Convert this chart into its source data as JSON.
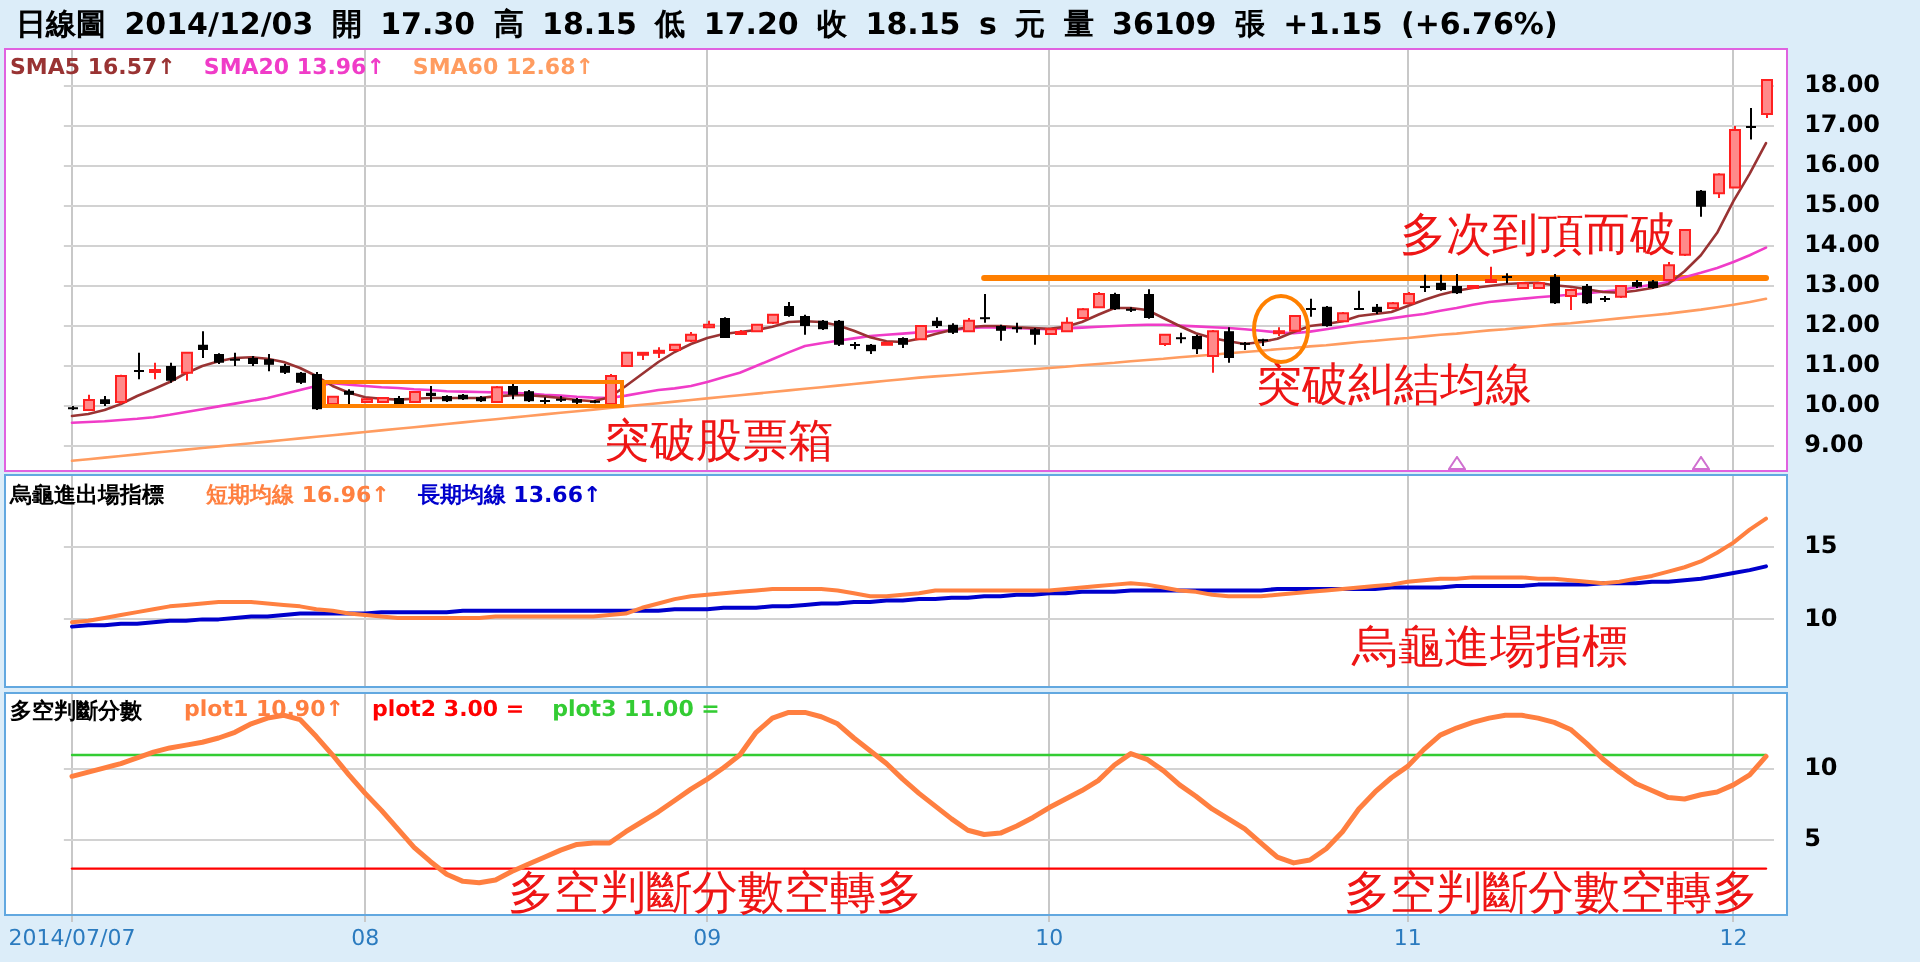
{
  "chart_data": [
    {
      "type": "candlestick",
      "title": "日線圖 2014/12/03 開 17.30 高 18.15 低 17.20 收 18.15 s 元 量 36109 張 +1.15 (+6.76%)",
      "categories": [
        "2014/07/07",
        null,
        null,
        null,
        null,
        null,
        null,
        null,
        null,
        null,
        null,
        null,
        null,
        null,
        null,
        null,
        null,
        null,
        "08",
        null,
        null,
        null,
        null,
        null,
        null,
        null,
        null,
        null,
        null,
        null,
        null,
        null,
        null,
        null,
        null,
        null,
        null,
        null,
        null,
        "09",
        null,
        null,
        null,
        null,
        null,
        null,
        null,
        null,
        null,
        null,
        null,
        null,
        null,
        null,
        null,
        null,
        null,
        null,
        null,
        null,
        "10",
        null,
        null,
        null,
        null,
        null,
        null,
        null,
        null,
        null,
        null,
        null,
        null,
        null,
        null,
        null,
        null,
        null,
        null,
        null,
        null,
        null,
        "11",
        null,
        null,
        null,
        null,
        null,
        null,
        null,
        null,
        null,
        null,
        null,
        null,
        null,
        null,
        null,
        null,
        null,
        null,
        null,
        "12",
        null,
        null
      ],
      "ohlc": [
        [
          9.97,
          10.0,
          9.9,
          9.93
        ],
        [
          9.9,
          10.28,
          9.88,
          10.15
        ],
        [
          10.17,
          10.25,
          10.0,
          10.05
        ],
        [
          10.1,
          10.78,
          10.05,
          10.75
        ],
        [
          10.9,
          11.33,
          10.67,
          10.88
        ],
        [
          10.88,
          11.08,
          10.67,
          10.9
        ],
        [
          11.0,
          11.08,
          10.58,
          10.63
        ],
        [
          10.83,
          11.35,
          10.63,
          11.33
        ],
        [
          11.53,
          11.87,
          11.2,
          11.4
        ],
        [
          11.3,
          11.32,
          11.05,
          11.08
        ],
        [
          11.18,
          11.33,
          11.0,
          11.15
        ],
        [
          11.2,
          11.25,
          11.0,
          11.05
        ],
        [
          11.17,
          11.3,
          10.87,
          11.03
        ],
        [
          11.0,
          11.05,
          10.8,
          10.83
        ],
        [
          10.83,
          10.85,
          10.55,
          10.58
        ],
        [
          10.8,
          10.85,
          9.9,
          9.92
        ],
        [
          10.05,
          10.25,
          10.0,
          10.23
        ],
        [
          10.38,
          10.42,
          9.98,
          10.28
        ],
        [
          10.1,
          10.2,
          10.08,
          10.17
        ],
        [
          10.1,
          10.22,
          10.08,
          10.2
        ],
        [
          10.2,
          10.25,
          9.95,
          10.0
        ],
        [
          10.1,
          10.37,
          10.08,
          10.35
        ],
        [
          10.33,
          10.5,
          10.1,
          10.25
        ],
        [
          10.25,
          10.27,
          10.1,
          10.12
        ],
        [
          10.28,
          10.3,
          10.15,
          10.17
        ],
        [
          10.22,
          10.25,
          10.1,
          10.12
        ],
        [
          10.1,
          10.5,
          10.08,
          10.47
        ],
        [
          10.5,
          10.58,
          10.17,
          10.28
        ],
        [
          10.37,
          10.4,
          10.1,
          10.12
        ],
        [
          10.15,
          10.22,
          10.05,
          10.12
        ],
        [
          10.18,
          10.25,
          10.1,
          10.15
        ],
        [
          10.17,
          10.2,
          10.05,
          10.08
        ],
        [
          10.13,
          10.15,
          10.07,
          10.1
        ],
        [
          10.05,
          10.8,
          10.03,
          10.75
        ],
        [
          11.0,
          11.35,
          10.98,
          11.33
        ],
        [
          11.32,
          11.35,
          11.15,
          11.33
        ],
        [
          11.35,
          11.47,
          11.2,
          11.38
        ],
        [
          11.4,
          11.55,
          11.38,
          11.53
        ],
        [
          11.63,
          11.85,
          11.6,
          11.78
        ],
        [
          11.97,
          12.13,
          11.95,
          12.03
        ],
        [
          12.2,
          12.22,
          11.7,
          11.7
        ],
        [
          11.83,
          11.9,
          11.78,
          11.85
        ],
        [
          11.87,
          12.05,
          11.85,
          12.03
        ],
        [
          12.08,
          12.3,
          12.05,
          12.28
        ],
        [
          12.5,
          12.6,
          12.23,
          12.25
        ],
        [
          12.25,
          12.28,
          11.78,
          12.0
        ],
        [
          12.13,
          12.15,
          11.9,
          11.92
        ],
        [
          12.13,
          12.15,
          11.5,
          11.53
        ],
        [
          11.55,
          11.6,
          11.42,
          11.53
        ],
        [
          11.53,
          11.55,
          11.3,
          11.37
        ],
        [
          11.55,
          11.6,
          11.53,
          11.58
        ],
        [
          11.7,
          11.72,
          11.45,
          11.53
        ],
        [
          11.67,
          12.02,
          11.65,
          12.0
        ],
        [
          12.13,
          12.22,
          11.95,
          12.0
        ],
        [
          12.03,
          12.07,
          11.8,
          11.83
        ],
        [
          11.87,
          12.2,
          11.85,
          12.13
        ],
        [
          12.22,
          12.8,
          12.08,
          12.2
        ],
        [
          12.0,
          12.03,
          11.63,
          11.88
        ],
        [
          11.97,
          12.08,
          11.83,
          11.96
        ],
        [
          11.92,
          11.95,
          11.53,
          11.78
        ],
        [
          11.8,
          11.95,
          11.78,
          11.92
        ],
        [
          11.87,
          12.22,
          11.85,
          12.08
        ],
        [
          12.2,
          12.45,
          12.18,
          12.42
        ],
        [
          12.47,
          12.85,
          12.45,
          12.8
        ],
        [
          12.8,
          12.83,
          12.4,
          12.42
        ],
        [
          12.43,
          12.47,
          12.35,
          12.38
        ],
        [
          12.8,
          12.92,
          12.18,
          12.2
        ],
        [
          11.55,
          11.8,
          11.5,
          11.78
        ],
        [
          11.72,
          11.83,
          11.57,
          11.7
        ],
        [
          11.75,
          11.78,
          11.3,
          11.42
        ],
        [
          11.25,
          11.9,
          10.83,
          11.87
        ],
        [
          11.87,
          11.97,
          11.08,
          11.2
        ],
        [
          11.58,
          11.6,
          11.4,
          11.57
        ],
        [
          11.67,
          11.68,
          11.5,
          11.66
        ],
        [
          11.83,
          11.97,
          11.75,
          11.87
        ],
        [
          11.88,
          12.27,
          11.87,
          12.25
        ],
        [
          12.45,
          12.68,
          12.23,
          12.43
        ],
        [
          12.48,
          12.5,
          11.98,
          12.0
        ],
        [
          12.12,
          12.35,
          12.1,
          12.32
        ],
        [
          12.45,
          12.88,
          12.4,
          12.42
        ],
        [
          12.48,
          12.55,
          12.3,
          12.35
        ],
        [
          12.45,
          12.6,
          12.42,
          12.57
        ],
        [
          12.57,
          12.85,
          12.55,
          12.8
        ],
        [
          13.0,
          13.28,
          12.85,
          12.98
        ],
        [
          13.08,
          13.28,
          12.88,
          12.9
        ],
        [
          13.0,
          13.3,
          12.8,
          12.82
        ],
        [
          12.95,
          13.02,
          12.93,
          13.0
        ],
        [
          13.13,
          13.48,
          13.1,
          13.15
        ],
        [
          13.25,
          13.32,
          13.07,
          13.22
        ],
        [
          12.95,
          13.1,
          12.93,
          13.07
        ],
        [
          12.95,
          13.1,
          12.93,
          13.07
        ],
        [
          13.23,
          13.3,
          12.55,
          12.57
        ],
        [
          12.75,
          12.93,
          12.4,
          12.9
        ],
        [
          13.0,
          13.05,
          12.55,
          12.57
        ],
        [
          12.7,
          12.75,
          12.6,
          12.68
        ],
        [
          12.73,
          13.02,
          12.7,
          13.0
        ],
        [
          13.1,
          13.15,
          12.95,
          12.98
        ],
        [
          13.12,
          13.15,
          12.93,
          12.95
        ],
        [
          13.15,
          13.6,
          13.12,
          13.52
        ],
        [
          13.78,
          14.42,
          13.75,
          14.4
        ],
        [
          15.38,
          15.4,
          14.73,
          14.98
        ],
        [
          15.32,
          15.82,
          15.2,
          15.79
        ],
        [
          15.46,
          17.0,
          15.45,
          16.9
        ],
        [
          17.0,
          17.45,
          16.66,
          17.0
        ],
        [
          17.3,
          18.15,
          17.2,
          18.15
        ]
      ],
      "series": [
        {
          "name": "SMA5 16.57↑",
          "type": "line",
          "color": "#993333",
          "values": [
            9.75,
            9.8,
            9.9,
            10.05,
            10.25,
            10.42,
            10.6,
            10.82,
            11.0,
            11.12,
            11.2,
            11.22,
            11.18,
            11.1,
            10.95,
            10.75,
            10.5,
            10.33,
            10.22,
            10.18,
            10.16,
            10.18,
            10.2,
            10.2,
            10.2,
            10.2,
            10.24,
            10.27,
            10.27,
            10.24,
            10.2,
            10.15,
            10.12,
            10.22,
            10.5,
            10.8,
            11.1,
            11.35,
            11.55,
            11.7,
            11.8,
            11.85,
            11.9,
            11.98,
            12.1,
            12.12,
            12.1,
            12.02,
            11.88,
            11.72,
            11.62,
            11.6,
            11.68,
            11.8,
            11.9,
            11.97,
            12.0,
            12.0,
            11.97,
            11.95,
            11.93,
            11.98,
            12.1,
            12.28,
            12.45,
            12.45,
            12.4,
            12.2,
            12.0,
            11.82,
            11.7,
            11.62,
            11.55,
            11.6,
            11.68,
            11.85,
            12.0,
            12.05,
            12.12,
            12.25,
            12.3,
            12.35,
            12.5,
            12.65,
            12.78,
            12.88,
            12.95,
            13.0,
            13.05,
            13.07,
            13.08,
            13.02,
            12.98,
            12.92,
            12.85,
            12.83,
            12.88,
            12.95,
            13.05,
            13.37,
            13.77,
            14.33,
            15.12,
            15.81,
            16.57
          ]
        },
        {
          "name": "SMA20 13.96↑",
          "type": "line",
          "color": "#f03cc8",
          "values": [
            9.58,
            9.6,
            9.62,
            9.65,
            9.68,
            9.72,
            9.78,
            9.85,
            9.92,
            9.99,
            10.06,
            10.13,
            10.2,
            10.3,
            10.4,
            10.5,
            10.57,
            10.53,
            10.5,
            10.47,
            10.45,
            10.42,
            10.4,
            10.37,
            10.36,
            10.35,
            10.34,
            10.33,
            10.31,
            10.28,
            10.26,
            10.23,
            10.21,
            10.2,
            10.26,
            10.33,
            10.4,
            10.44,
            10.5,
            10.6,
            10.72,
            10.83,
            11.0,
            11.17,
            11.34,
            11.5,
            11.57,
            11.63,
            11.69,
            11.75,
            11.78,
            11.81,
            11.84,
            11.87,
            11.9,
            11.94,
            11.97,
            11.96,
            11.95,
            11.93,
            11.92,
            11.94,
            11.96,
            11.98,
            12.0,
            12.02,
            12.03,
            12.03,
            12.01,
            11.99,
            11.97,
            11.95,
            11.92,
            11.88,
            11.84,
            11.82,
            11.86,
            11.92,
            11.98,
            12.05,
            12.12,
            12.19,
            12.25,
            12.3,
            12.38,
            12.45,
            12.53,
            12.6,
            12.64,
            12.68,
            12.72,
            12.75,
            12.78,
            12.82,
            12.86,
            12.9,
            12.97,
            13.03,
            13.1,
            13.22,
            13.33,
            13.45,
            13.6,
            13.77,
            13.96
          ]
        },
        {
          "name": "SMA60 12.68↑",
          "type": "line",
          "color": "#ff9c60",
          "values": [
            8.63,
            8.67,
            8.71,
            8.75,
            8.79,
            8.83,
            8.87,
            8.91,
            8.95,
            8.99,
            9.03,
            9.07,
            9.11,
            9.15,
            9.19,
            9.23,
            9.27,
            9.31,
            9.35,
            9.39,
            9.43,
            9.47,
            9.51,
            9.55,
            9.59,
            9.63,
            9.67,
            9.71,
            9.75,
            9.79,
            9.83,
            9.87,
            9.91,
            9.95,
            9.99,
            10.03,
            10.07,
            10.11,
            10.15,
            10.19,
            10.23,
            10.27,
            10.31,
            10.35,
            10.39,
            10.43,
            10.47,
            10.51,
            10.55,
            10.59,
            10.63,
            10.67,
            10.71,
            10.74,
            10.77,
            10.8,
            10.83,
            10.86,
            10.89,
            10.92,
            10.95,
            10.98,
            11.02,
            11.05,
            11.08,
            11.12,
            11.15,
            11.18,
            11.22,
            11.25,
            11.28,
            11.32,
            11.35,
            11.38,
            11.42,
            11.45,
            11.49,
            11.52,
            11.56,
            11.6,
            11.63,
            11.67,
            11.7,
            11.74,
            11.78,
            11.81,
            11.85,
            11.89,
            11.92,
            11.96,
            12.0,
            12.04,
            12.07,
            12.11,
            12.15,
            12.19,
            12.23,
            12.27,
            12.31,
            12.36,
            12.41,
            12.47,
            12.53,
            12.6,
            12.68
          ]
        },
        {
          "type": "line",
          "color": "#ff7f00",
          "values": [
            null,
            null,
            null,
            null,
            null,
            null,
            null,
            null,
            null,
            null,
            null,
            null,
            null,
            null,
            null,
            null,
            null,
            null,
            null,
            null,
            null,
            null,
            null,
            null,
            null,
            null,
            null,
            null,
            null,
            null,
            null,
            null,
            null,
            null,
            null,
            null,
            null,
            null,
            null,
            null,
            null,
            null,
            null,
            null,
            null,
            null,
            null,
            null,
            null,
            null,
            null,
            null,
            null,
            null,
            null,
            null,
            13.2,
            13.2,
            13.2,
            13.2,
            13.2,
            13.2,
            13.2,
            13.2,
            13.2,
            13.2,
            13.2,
            13.2,
            13.2,
            13.2,
            13.2,
            13.2,
            13.2,
            13.2,
            13.2,
            13.2,
            13.2,
            13.2,
            13.2,
            13.2,
            13.2,
            13.2,
            13.2,
            13.2,
            13.2,
            13.2,
            13.2,
            13.2,
            13.2,
            13.2,
            13.2,
            13.2,
            13.2,
            13.2,
            13.2,
            13.2,
            13.2,
            13.2,
            13.2,
            13.2,
            13.2,
            13.2,
            13.2,
            13.2,
            13.2
          ]
        }
      ],
      "ylim": [
        8.4,
        18.9
      ],
      "yticks": [
        {
          "value": 9,
          "label": "9.00"
        },
        {
          "value": 10,
          "label": "10.00"
        },
        {
          "value": 11,
          "label": "11.00"
        },
        {
          "value": 12,
          "label": "12.00"
        },
        {
          "value": 13,
          "label": "13.00"
        },
        {
          "value": 14,
          "label": "14.00"
        },
        {
          "value": 15,
          "label": "15.00"
        },
        {
          "value": 16,
          "label": "16.00"
        },
        {
          "value": 17,
          "label": "17.00"
        },
        {
          "value": 18,
          "label": "18.00"
        }
      ],
      "grid": true,
      "legend": "top left",
      "tick_labels": "y",
      "annotations": [
        "突破股票箱",
        "突破糾結均線",
        "多次到頂而破"
      ]
    },
    {
      "type": "line",
      "title": "烏龜進出場指標",
      "categories": [
        "2014/07/07",
        null,
        null,
        null,
        null,
        null,
        null,
        null,
        null,
        null,
        null,
        null,
        null,
        null,
        null,
        null,
        null,
        null,
        "08",
        null,
        null,
        null,
        null,
        null,
        null,
        null,
        null,
        null,
        null,
        null,
        null,
        null,
        null,
        null,
        null,
        null,
        null,
        null,
        null,
        "09",
        null,
        null,
        null,
        null,
        null,
        null,
        null,
        null,
        null,
        null,
        null,
        null,
        null,
        null,
        null,
        null,
        null,
        null,
        null,
        null,
        "10",
        null,
        null,
        null,
        null,
        null,
        null,
        null,
        null,
        null,
        null,
        null,
        null,
        null,
        null,
        null,
        null,
        null,
        null,
        null,
        null,
        null,
        "11",
        null,
        null,
        null,
        null,
        null,
        null,
        null,
        null,
        null,
        null,
        null,
        null,
        null,
        null,
        null,
        null,
        null,
        null,
        null,
        "12",
        null,
        null
      ],
      "series": [
        {
          "name": "短期均線 16.96↑",
          "color": "#ff8040",
          "values": [
            9.8,
            9.9,
            10.1,
            10.3,
            10.5,
            10.7,
            10.9,
            11.0,
            11.1,
            11.2,
            11.2,
            11.2,
            11.1,
            11.0,
            10.9,
            10.7,
            10.6,
            10.4,
            10.3,
            10.2,
            10.1,
            10.1,
            10.1,
            10.1,
            10.1,
            10.1,
            10.2,
            10.2,
            10.2,
            10.2,
            10.2,
            10.2,
            10.2,
            10.3,
            10.4,
            10.8,
            11.1,
            11.4,
            11.6,
            11.7,
            11.8,
            11.9,
            12.0,
            12.1,
            12.1,
            12.1,
            12.1,
            12.0,
            11.8,
            11.6,
            11.6,
            11.7,
            11.8,
            12.0,
            12.0,
            12.0,
            12.0,
            12.0,
            12.0,
            12.0,
            12.0,
            12.1,
            12.2,
            12.3,
            12.4,
            12.5,
            12.4,
            12.2,
            12.0,
            11.9,
            11.7,
            11.6,
            11.6,
            11.6,
            11.7,
            11.8,
            11.9,
            12.0,
            12.1,
            12.2,
            12.3,
            12.4,
            12.6,
            12.7,
            12.8,
            12.8,
            12.9,
            12.9,
            12.9,
            12.9,
            12.8,
            12.8,
            12.7,
            12.6,
            12.5,
            12.6,
            12.8,
            13.0,
            13.3,
            13.6,
            14.0,
            14.6,
            15.3,
            16.2,
            16.96
          ]
        },
        {
          "name": "長期均線 13.66↑",
          "color": "#0000cc",
          "values": [
            9.5,
            9.6,
            9.6,
            9.7,
            9.7,
            9.8,
            9.9,
            9.9,
            10.0,
            10.0,
            10.1,
            10.2,
            10.2,
            10.3,
            10.4,
            10.4,
            10.4,
            10.4,
            10.4,
            10.5,
            10.5,
            10.5,
            10.5,
            10.5,
            10.6,
            10.6,
            10.6,
            10.6,
            10.6,
            10.6,
            10.6,
            10.6,
            10.6,
            10.6,
            10.6,
            10.6,
            10.6,
            10.7,
            10.7,
            10.7,
            10.8,
            10.8,
            10.8,
            10.9,
            10.9,
            11.0,
            11.1,
            11.1,
            11.2,
            11.2,
            11.3,
            11.3,
            11.4,
            11.4,
            11.5,
            11.5,
            11.6,
            11.6,
            11.7,
            11.7,
            11.8,
            11.8,
            11.9,
            11.9,
            11.9,
            12.0,
            12.0,
            12.0,
            12.0,
            12.0,
            12.0,
            12.0,
            12.0,
            12.0,
            12.1,
            12.1,
            12.1,
            12.1,
            12.1,
            12.1,
            12.1,
            12.2,
            12.2,
            12.2,
            12.2,
            12.3,
            12.3,
            12.3,
            12.3,
            12.3,
            12.4,
            12.4,
            12.4,
            12.4,
            12.5,
            12.5,
            12.5,
            12.6,
            12.6,
            12.7,
            12.8,
            13.0,
            13.2,
            13.4,
            13.66
          ]
        }
      ],
      "ylim": [
        5.4,
        19.9
      ],
      "yticks": [
        10,
        15
      ],
      "grid": true,
      "legend": "top left",
      "tick_labels": "y",
      "annotations": [
        "烏龜進場指標"
      ]
    },
    {
      "type": "line",
      "title": "多空判斷分數",
      "categories": [
        "2014/07/07",
        null,
        null,
        null,
        null,
        null,
        null,
        null,
        null,
        null,
        null,
        null,
        null,
        null,
        null,
        null,
        null,
        null,
        "08",
        null,
        null,
        null,
        null,
        null,
        null,
        null,
        null,
        null,
        null,
        null,
        null,
        null,
        null,
        null,
        null,
        null,
        null,
        null,
        null,
        "09",
        null,
        null,
        null,
        null,
        null,
        null,
        null,
        null,
        null,
        null,
        null,
        null,
        null,
        null,
        null,
        null,
        null,
        null,
        null,
        null,
        "10",
        null,
        null,
        null,
        null,
        null,
        null,
        null,
        null,
        null,
        null,
        null,
        null,
        null,
        null,
        null,
        null,
        null,
        null,
        null,
        null,
        null,
        "11",
        null,
        null,
        null,
        null,
        null,
        null,
        null,
        null,
        null,
        null,
        null,
        null,
        null,
        null,
        null,
        null,
        null,
        null,
        null,
        "12",
        null,
        null
      ],
      "series": [
        {
          "name": "plot1 10.90↑",
          "color": "#ff7f40",
          "values": [
            9.5,
            9.8,
            10.1,
            10.4,
            10.8,
            11.2,
            11.5,
            11.7,
            11.9,
            12.2,
            12.6,
            13.2,
            13.6,
            13.8,
            13.5,
            12.3,
            11.0,
            9.6,
            8.3,
            7.1,
            5.8,
            4.5,
            3.5,
            2.6,
            2.1,
            2.0,
            2.2,
            2.8,
            3.3,
            3.8,
            4.3,
            4.7,
            4.8,
            4.8,
            5.6,
            6.3,
            7.0,
            7.8,
            8.6,
            9.3,
            10.1,
            11.0,
            12.6,
            13.6,
            14.0,
            14.0,
            13.7,
            13.2,
            12.2,
            11.3,
            10.4,
            9.3,
            8.3,
            7.4,
            6.5,
            5.7,
            5.4,
            5.5,
            6.0,
            6.6,
            7.3,
            7.9,
            8.5,
            9.2,
            10.3,
            11.1,
            10.7,
            9.9,
            8.9,
            8.1,
            7.2,
            6.5,
            5.8,
            4.8,
            3.8,
            3.4,
            3.6,
            4.4,
            5.6,
            7.2,
            8.4,
            9.4,
            10.2,
            11.4,
            12.4,
            12.9,
            13.3,
            13.6,
            13.8,
            13.8,
            13.6,
            13.3,
            12.8,
            11.8,
            10.7,
            9.8,
            9.0,
            8.5,
            8.0,
            7.9,
            8.2,
            8.4,
            8.9,
            9.6,
            10.9
          ]
        },
        {
          "name": "plot2 3.00 =",
          "color": "#ff0000",
          "values": [
            3.0,
            3.0,
            3.0,
            3.0,
            3.0,
            3.0,
            3.0,
            3.0,
            3.0,
            3.0,
            3.0,
            3.0,
            3.0,
            3.0,
            3.0,
            3.0,
            3.0,
            3.0,
            3.0,
            3.0,
            3.0,
            3.0,
            3.0,
            3.0,
            3.0,
            3.0,
            3.0,
            3.0,
            3.0,
            3.0,
            3.0,
            3.0,
            3.0,
            3.0,
            3.0,
            3.0,
            3.0,
            3.0,
            3.0,
            3.0,
            3.0,
            3.0,
            3.0,
            3.0,
            3.0,
            3.0,
            3.0,
            3.0,
            3.0,
            3.0,
            3.0,
            3.0,
            3.0,
            3.0,
            3.0,
            3.0,
            3.0,
            3.0,
            3.0,
            3.0,
            3.0,
            3.0,
            3.0,
            3.0,
            3.0,
            3.0,
            3.0,
            3.0,
            3.0,
            3.0,
            3.0,
            3.0,
            3.0,
            3.0,
            3.0,
            3.0,
            3.0,
            3.0,
            3.0,
            3.0,
            3.0,
            3.0,
            3.0,
            3.0,
            3.0,
            3.0,
            3.0,
            3.0,
            3.0,
            3.0,
            3.0,
            3.0,
            3.0,
            3.0,
            3.0,
            3.0,
            3.0,
            3.0,
            3.0,
            3.0,
            3.0,
            3.0,
            3.0,
            3.0,
            3.0
          ]
        },
        {
          "name": "plot3 11.00 =",
          "color": "#33cc33",
          "values": [
            11.0,
            11.0,
            11.0,
            11.0,
            11.0,
            11.0,
            11.0,
            11.0,
            11.0,
            11.0,
            11.0,
            11.0,
            11.0,
            11.0,
            11.0,
            11.0,
            11.0,
            11.0,
            11.0,
            11.0,
            11.0,
            11.0,
            11.0,
            11.0,
            11.0,
            11.0,
            11.0,
            11.0,
            11.0,
            11.0,
            11.0,
            11.0,
            11.0,
            11.0,
            11.0,
            11.0,
            11.0,
            11.0,
            11.0,
            11.0,
            11.0,
            11.0,
            11.0,
            11.0,
            11.0,
            11.0,
            11.0,
            11.0,
            11.0,
            11.0,
            11.0,
            11.0,
            11.0,
            11.0,
            11.0,
            11.0,
            11.0,
            11.0,
            11.0,
            11.0,
            11.0,
            11.0,
            11.0,
            11.0,
            11.0,
            11.0,
            11.0,
            11.0,
            11.0,
            11.0,
            11.0,
            11.0,
            11.0,
            11.0,
            11.0,
            11.0,
            11.0,
            11.0,
            11.0,
            11.0,
            11.0,
            11.0,
            11.0,
            11.0,
            11.0,
            11.0,
            11.0,
            11.0,
            11.0,
            11.0,
            11.0,
            11.0,
            11.0,
            11.0,
            11.0,
            11.0,
            11.0,
            11.0,
            11.0,
            11.0,
            11.0,
            11.0,
            11.0,
            11.0,
            11.0
          ]
        }
      ],
      "ylim": [
        -0.2,
        15.3
      ],
      "yticks": [
        5,
        10
      ],
      "grid": true,
      "legend": "top left",
      "annotations": [
        "多空判斷分數空轉多",
        "多空判斷分數空轉多"
      ]
    }
  ]
}
